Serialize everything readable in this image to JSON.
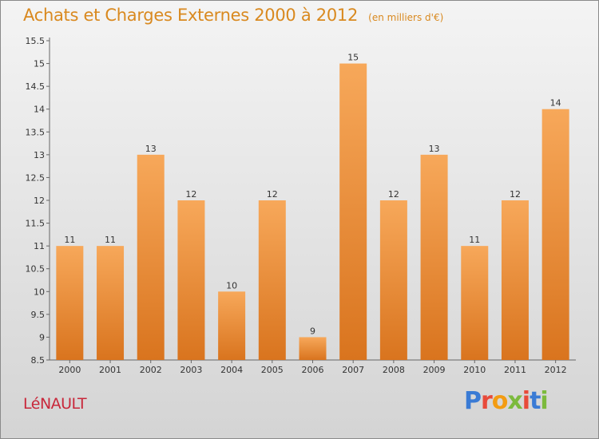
{
  "header": {
    "title": "Achats et Charges Externes 2000 à 2012",
    "unit": "(en milliers d'€)"
  },
  "footer": {
    "town": "LéNAULT",
    "logo_letters": [
      "P",
      "r",
      "o",
      "x",
      "i",
      "t",
      "i"
    ],
    "logo_colors": [
      "#3a7bd5",
      "#e84a3a",
      "#f39c12",
      "#7cba3d",
      "#e84a3a",
      "#3a7bd5",
      "#7cba3d"
    ]
  },
  "colors": {
    "bar_light": "#f7a85a",
    "bar_dark": "#d9741e",
    "text": "#333333"
  },
  "chart_data": {
    "type": "bar",
    "title": "Achats et Charges Externes 2000 à 2012",
    "categories": [
      "2000",
      "2001",
      "2002",
      "2003",
      "2004",
      "2005",
      "2006",
      "2007",
      "2008",
      "2009",
      "2010",
      "2011",
      "2012"
    ],
    "values": [
      11,
      11,
      13,
      12,
      10,
      12,
      9,
      15,
      12,
      13,
      11,
      12,
      14
    ],
    "ylim": [
      8.5,
      15.5
    ],
    "yticks": [
      8.5,
      9,
      9.5,
      10,
      10.5,
      11,
      11.5,
      12,
      12.5,
      13,
      13.5,
      14,
      14.5,
      15,
      15.5
    ],
    "grid": false
  }
}
